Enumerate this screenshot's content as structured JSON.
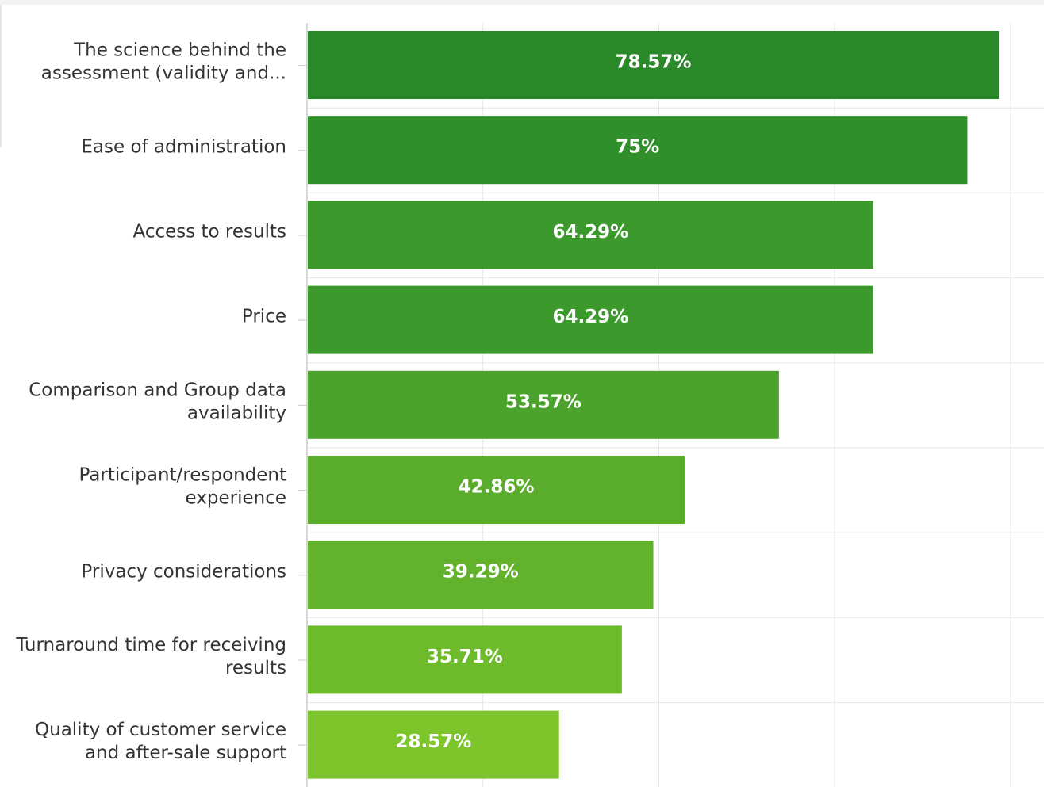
{
  "chart_data": {
    "type": "bar",
    "orientation": "horizontal",
    "categories": [
      [
        "The science behind the",
        "assessment (validity and..."
      ],
      [
        "Ease of administration"
      ],
      [
        "Access to results"
      ],
      [
        "Price"
      ],
      [
        "Comparison and Group data",
        "availability"
      ],
      [
        "Participant/respondent",
        "experience"
      ],
      [
        "Privacy considerations"
      ],
      [
        "Turnaround time for receiving",
        "results"
      ],
      [
        "Quality of customer service",
        "and after-sale support"
      ]
    ],
    "values": [
      78.57,
      75,
      64.29,
      64.29,
      53.57,
      42.86,
      39.29,
      35.71,
      28.57
    ],
    "value_labels": [
      "78.57%",
      "75%",
      "64.29%",
      "64.29%",
      "53.57%",
      "42.86%",
      "39.29%",
      "35.71%",
      "28.57%"
    ],
    "title": "",
    "xlabel": "",
    "ylabel": "",
    "xlim": [
      0,
      84
    ],
    "grid": true,
    "legend": "none",
    "colors": [
      "#2a8a2a",
      "#2f8f2a",
      "#3c992b",
      "#3c992b",
      "#4ba22c",
      "#5aac2c",
      "#63b22c",
      "#6dbb2a",
      "#7cc52a"
    ]
  }
}
